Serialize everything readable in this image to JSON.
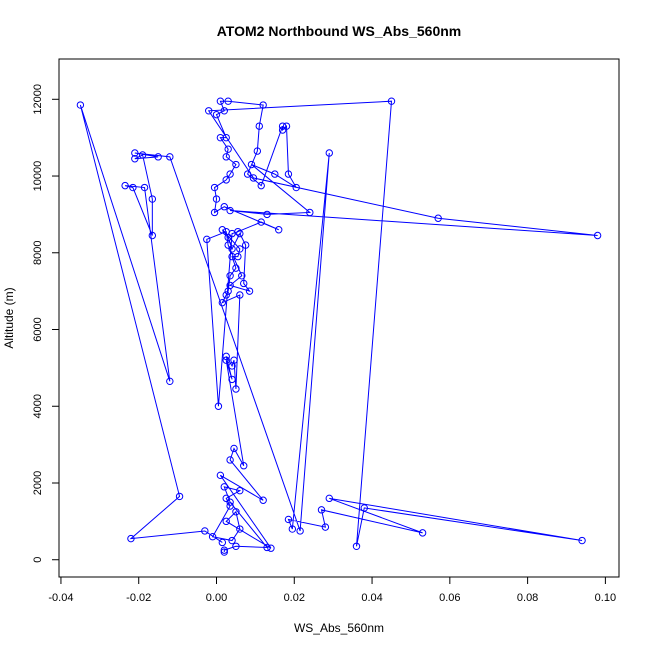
{
  "chart_data": {
    "type": "line",
    "title": "ATOM2 Northbound WS_Abs_560nm",
    "xlabel": "WS_Abs_560nm",
    "ylabel": "Altitude (m)",
    "xlim": [
      -0.0405,
      0.1035
    ],
    "ylim": [
      -450,
      13050
    ],
    "x_ticks": [
      -0.04,
      -0.02,
      0.0,
      0.02,
      0.04,
      0.06,
      0.08,
      0.1
    ],
    "x_tick_labels": [
      "-0.04",
      "-0.02",
      "0.00",
      "0.02",
      "0.04",
      "0.06",
      "0.08",
      "0.10"
    ],
    "y_ticks": [
      0,
      2000,
      4000,
      6000,
      8000,
      10000,
      12000
    ],
    "y_tick_labels": [
      "0",
      "2000",
      "4000",
      "6000",
      "8000",
      "10000",
      "12000"
    ],
    "grid": false,
    "series": [
      {
        "color": "#0000ff",
        "marker": "open-circle",
        "points": [
          [
            0.002,
            200
          ],
          [
            0.002,
            250
          ],
          [
            0.005,
            350
          ],
          [
            0.013,
            320
          ],
          [
            0.0035,
            1500
          ],
          [
            0.002,
            1900
          ],
          [
            0.006,
            1800
          ],
          [
            0.0025,
            1600
          ],
          [
            0.0035,
            1400
          ],
          [
            -0.001,
            600
          ],
          [
            0.004,
            500
          ],
          [
            0.006,
            800
          ],
          [
            0.005,
            1250
          ],
          [
            0.0025,
            1000
          ],
          [
            0.014,
            300
          ],
          [
            0.001,
            2200
          ],
          [
            0.012,
            1550
          ],
          [
            0.0035,
            2600
          ],
          [
            0.0045,
            2900
          ],
          [
            0.007,
            2450
          ],
          [
            0.0025,
            5200
          ],
          [
            0.004,
            4700
          ],
          [
            0.0025,
            5300
          ],
          [
            0.004,
            5050
          ],
          [
            0.0045,
            5200
          ],
          [
            0.005,
            4450
          ],
          [
            0.006,
            6900
          ],
          [
            0.0015,
            6700
          ],
          [
            0.0025,
            6900
          ],
          [
            0.003,
            7000
          ],
          [
            0.0035,
            7400
          ],
          [
            0.005,
            7600
          ],
          [
            0.004,
            7900
          ],
          [
            0.0055,
            7900
          ],
          [
            0.006,
            8100
          ],
          [
            0.0015,
            8600
          ],
          [
            0.003,
            8400
          ],
          [
            0.004,
            8100
          ],
          [
            0.006,
            8500
          ],
          [
            0.0075,
            8200
          ],
          [
            0.007,
            7200
          ],
          [
            0.0085,
            7000
          ],
          [
            0.0035,
            7150
          ],
          [
            0.0065,
            7400
          ],
          [
            0.003,
            8200
          ],
          [
            0.0025,
            8550
          ],
          [
            -0.0025,
            8350
          ],
          [
            0.0005,
            4000
          ],
          [
            0.004,
            8500
          ],
          [
            0.0055,
            8550
          ],
          [
            0.0115,
            8800
          ],
          [
            0.016,
            8600
          ],
          [
            0.002,
            9200
          ],
          [
            -0.0005,
            9050
          ],
          [
            0.0,
            9400
          ],
          [
            -0.0005,
            9700
          ],
          [
            0.0025,
            9900
          ],
          [
            0.0035,
            10050
          ],
          [
            0.005,
            10300
          ],
          [
            0.0025,
            10500
          ],
          [
            0.003,
            10700
          ],
          [
            0.001,
            11000
          ],
          [
            0.0025,
            11000
          ],
          [
            0.0,
            11600
          ],
          [
            0.002,
            11700
          ],
          [
            0.001,
            11950
          ],
          [
            0.003,
            11950
          ],
          [
            0.012,
            11850
          ],
          [
            0.011,
            11300
          ],
          [
            0.0105,
            10650
          ],
          [
            0.008,
            10050
          ],
          [
            0.0115,
            9750
          ],
          [
            0.017,
            11300
          ],
          [
            0.017,
            11200
          ],
          [
            0.018,
            11300
          ],
          [
            0.0185,
            10050
          ],
          [
            0.0205,
            9700
          ],
          [
            0.015,
            10050
          ],
          [
            0.009,
            10300
          ],
          [
            0.024,
            9050
          ],
          [
            0.013,
            9000
          ],
          [
            0.0035,
            9100
          ],
          [
            0.098,
            8450
          ],
          [
            0.057,
            8900
          ],
          [
            0.0095,
            9950
          ],
          [
            -0.002,
            11700
          ],
          [
            0.045,
            11950
          ],
          [
            0.036,
            350
          ],
          [
            0.038,
            1350
          ],
          [
            0.094,
            500
          ],
          [
            0.029,
            1600
          ],
          [
            0.053,
            700
          ],
          [
            0.027,
            1300
          ],
          [
            0.028,
            850
          ],
          [
            0.0185,
            1050
          ],
          [
            0.0195,
            800
          ],
          [
            0.029,
            10600
          ],
          [
            0.0215,
            750
          ],
          [
            -0.012,
            10500
          ],
          [
            -0.021,
            10600
          ],
          [
            -0.015,
            10500
          ],
          [
            -0.021,
            10450
          ],
          [
            -0.019,
            10550
          ],
          [
            -0.0165,
            9400
          ],
          [
            -0.0165,
            8450
          ],
          [
            -0.0215,
            9700
          ],
          [
            -0.0235,
            9750
          ],
          [
            -0.0185,
            9700
          ],
          [
            -0.012,
            4650
          ],
          [
            -0.035,
            11850
          ],
          [
            -0.0095,
            1650
          ],
          [
            -0.022,
            550
          ],
          [
            -0.003,
            750
          ],
          [
            0.0015,
            450
          ]
        ]
      }
    ]
  }
}
